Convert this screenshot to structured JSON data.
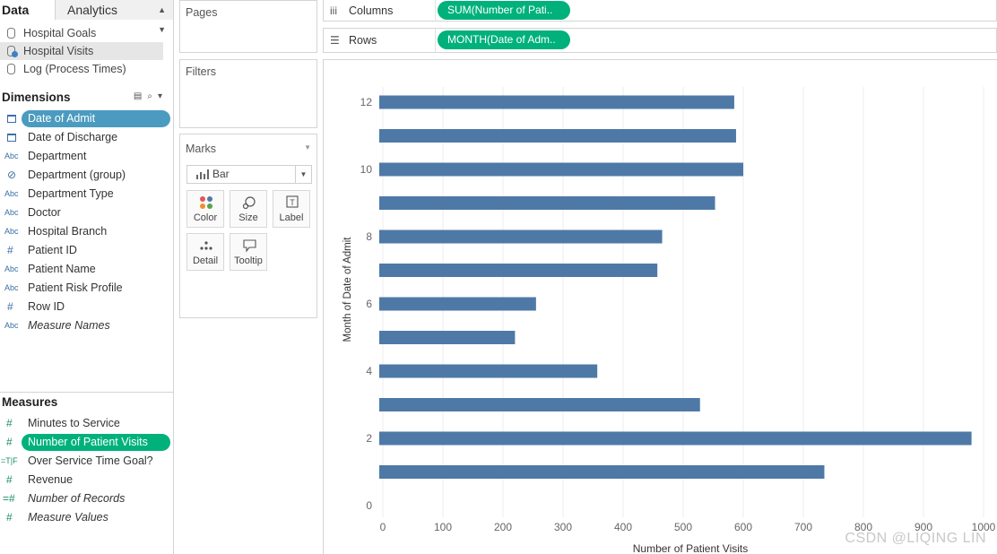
{
  "data_pane": {
    "tabs": [
      "Data",
      "Analytics"
    ],
    "data_sources": [
      {
        "label": "Hospital Goals",
        "active": false
      },
      {
        "label": "Hospital Visits",
        "active": true
      },
      {
        "label": "Log (Process Times)",
        "active": false
      }
    ],
    "dimensions_header": "Dimensions",
    "dimensions": [
      {
        "type": "date",
        "label": "Date of Admit",
        "highlight": true
      },
      {
        "type": "date",
        "label": "Date of Discharge"
      },
      {
        "type": "Abc",
        "label": "Department"
      },
      {
        "type": "group",
        "label": "Department (group)"
      },
      {
        "type": "Abc",
        "label": "Department Type"
      },
      {
        "type": "Abc",
        "label": "Doctor"
      },
      {
        "type": "Abc",
        "label": "Hospital Branch"
      },
      {
        "type": "#",
        "label": "Patient ID"
      },
      {
        "type": "Abc",
        "label": "Patient Name"
      },
      {
        "type": "Abc",
        "label": "Patient Risk Profile"
      },
      {
        "type": "#",
        "label": "Row ID"
      },
      {
        "type": "Abc",
        "label": "Measure Names",
        "italic": true
      }
    ],
    "measures_header": "Measures",
    "measures": [
      {
        "type": "#",
        "label": "Minutes to Service"
      },
      {
        "type": "#",
        "label": "Number of Patient Visits",
        "highlight": true
      },
      {
        "type": "=T|F",
        "label": "Over Service Time Goal?"
      },
      {
        "type": "#",
        "label": "Revenue"
      },
      {
        "type": "=#",
        "label": "Number of Records",
        "italic": true
      },
      {
        "type": "#",
        "label": "Measure Values",
        "italic": true
      }
    ]
  },
  "cards": {
    "pages": "Pages",
    "filters": "Filters",
    "marks": {
      "title": "Marks",
      "mark_type": "Bar",
      "buttons": [
        "Color",
        "Size",
        "Label",
        "Detail",
        "Tooltip"
      ]
    }
  },
  "shelves": {
    "columns": {
      "label": "Columns",
      "pill": "SUM(Number of Pati.."
    },
    "rows": {
      "label": "Rows",
      "pill": "MONTH(Date of Adm.."
    }
  },
  "chart_data": {
    "type": "bar",
    "orientation": "horizontal",
    "categories": [
      1,
      2,
      3,
      4,
      5,
      6,
      7,
      8,
      9,
      10,
      11,
      12
    ],
    "values": [
      735,
      980,
      528,
      357,
      220,
      255,
      457,
      465,
      553,
      600,
      588,
      585
    ],
    "xlabel": "Number of Patient Visits",
    "ylabel": "Month of Date of Admit",
    "xlim": [
      0,
      1000
    ],
    "ylim": [
      0,
      12
    ],
    "x_ticks": [
      0,
      100,
      200,
      300,
      400,
      500,
      600,
      700,
      800,
      900,
      1000
    ],
    "y_tick_labels": [
      0,
      2,
      4,
      6,
      8,
      10,
      12
    ],
    "bar_color": "#4e79a7",
    "grid": "vertical"
  },
  "watermark": "CSDN @LIQING LIN",
  "colors": {
    "accent_green": "#00b17c",
    "accent_blue": "#4a9bbf"
  }
}
